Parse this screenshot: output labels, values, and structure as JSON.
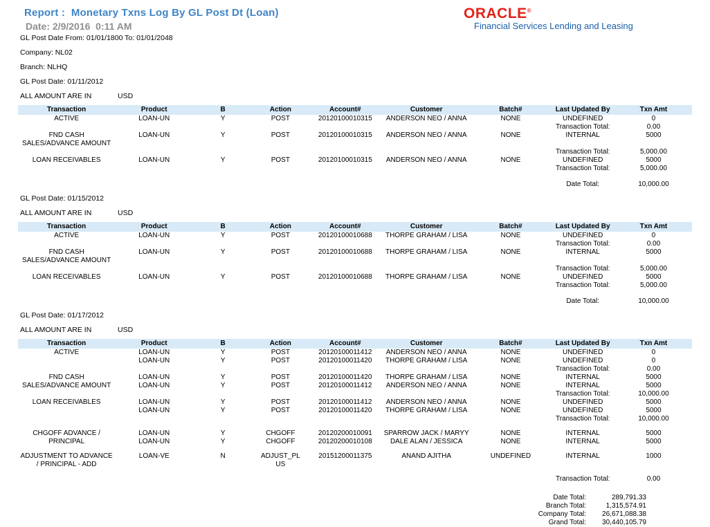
{
  "report": {
    "title": "Report :  Monetary Txns Log By GL Post Dt (Loan)",
    "generated": "Date: 2/9/2016  0:11 AM",
    "filters": {
      "date_range": "GL Post Date From: 01/01/1800 To: 01/01/2048",
      "company": "Company: NL02",
      "branch": "Branch: NLHQ"
    }
  },
  "brand": {
    "name": "ORACLE",
    "registered_mark": "®",
    "tagline": "Financial Services Lending and Leasing",
    "logo_color": "#e2231a",
    "tagline_color": "#1b5fa8"
  },
  "colors": {
    "title_blue": "#4084c7",
    "date_gray": "#8f8f8f",
    "table_header_bg": "#d8eaf7"
  },
  "table": {
    "columns": [
      "Transaction",
      "Product",
      "B",
      "Action",
      "Account#",
      "Customer",
      "Batch#",
      "Last Updated By",
      "Txn Amt"
    ]
  },
  "sections": [
    {
      "gl_post_date_line": "GL Post Date: 01/11/2012",
      "amount_note": "ALL AMOUNT ARE IN",
      "currency": "USD",
      "rows": [
        {
          "type": "data",
          "transaction": "ACTIVE",
          "product": "LOAN-UN",
          "b": "Y",
          "action": "POST",
          "account": "20120100010315",
          "customer": "ANDERSON NEO / ANNA",
          "batch": "NONE",
          "last_updated_by": "UNDEFINED",
          "txn_amt": "0"
        },
        {
          "type": "total",
          "label": "Transaction Total:",
          "amount": "0.00"
        },
        {
          "type": "data",
          "transaction": "FND CASH SALES/ADVANCE AMOUNT",
          "product": "LOAN-UN",
          "b": "Y",
          "action": "POST",
          "account": "20120100010315",
          "customer": "ANDERSON NEO / ANNA",
          "batch": "NONE",
          "last_updated_by": "INTERNAL",
          "txn_amt": "5000"
        },
        {
          "type": "total",
          "label": "Transaction Total:",
          "amount": "5,000.00"
        },
        {
          "type": "data",
          "transaction": "LOAN RECEIVABLES",
          "product": "LOAN-UN",
          "b": "Y",
          "action": "POST",
          "account": "20120100010315",
          "customer": "ANDERSON NEO / ANNA",
          "batch": "NONE",
          "last_updated_by": "UNDEFINED",
          "txn_amt": "5000"
        },
        {
          "type": "total",
          "label": "Transaction Total:",
          "amount": "5,000.00"
        },
        {
          "type": "total",
          "variant": "date",
          "label": "Date Total:",
          "amount": "10,000.00"
        }
      ]
    },
    {
      "gl_post_date_line": "GL Post Date: 01/15/2012",
      "amount_note": "ALL AMOUNT ARE IN",
      "currency": "USD",
      "rows": [
        {
          "type": "data",
          "transaction": "ACTIVE",
          "product": "LOAN-UN",
          "b": "Y",
          "action": "POST",
          "account": "20120100010688",
          "customer": "THORPE GRAHAM / LISA",
          "batch": "NONE",
          "last_updated_by": "UNDEFINED",
          "txn_amt": "0"
        },
        {
          "type": "total",
          "label": "Transaction Total:",
          "amount": "0.00"
        },
        {
          "type": "data",
          "transaction": "FND CASH SALES/ADVANCE AMOUNT",
          "product": "LOAN-UN",
          "b": "Y",
          "action": "POST",
          "account": "20120100010688",
          "customer": "THORPE GRAHAM / LISA",
          "batch": "NONE",
          "last_updated_by": "INTERNAL",
          "txn_amt": "5000"
        },
        {
          "type": "total",
          "label": "Transaction Total:",
          "amount": "5,000.00"
        },
        {
          "type": "data",
          "transaction": "LOAN RECEIVABLES",
          "product": "LOAN-UN",
          "b": "Y",
          "action": "POST",
          "account": "20120100010688",
          "customer": "THORPE GRAHAM / LISA",
          "batch": "NONE",
          "last_updated_by": "UNDEFINED",
          "txn_amt": "5000"
        },
        {
          "type": "total",
          "label": "Transaction Total:",
          "amount": "5,000.00"
        },
        {
          "type": "total",
          "variant": "date",
          "label": "Date Total:",
          "amount": "10,000.00"
        }
      ]
    },
    {
      "gl_post_date_line": "GL Post Date: 01/17/2012",
      "amount_note": "ALL AMOUNT ARE IN",
      "currency": "USD",
      "rows": [
        {
          "type": "data",
          "txn_rowspan": 2,
          "transaction": "ACTIVE",
          "product": "LOAN-UN",
          "b": "Y",
          "action": "POST",
          "account": "20120100011412",
          "customer": "ANDERSON NEO / ANNA",
          "batch": "NONE",
          "last_updated_by": "UNDEFINED",
          "txn_amt": "0"
        },
        {
          "type": "data",
          "product": "LOAN-UN",
          "b": "Y",
          "action": "POST",
          "account": "20120100011420",
          "customer": "THORPE GRAHAM / LISA",
          "batch": "NONE",
          "last_updated_by": "UNDEFINED",
          "txn_amt": "0"
        },
        {
          "type": "total",
          "label": "Transaction Total:",
          "amount": "0.00"
        },
        {
          "type": "data",
          "txn_rowspan": 2,
          "transaction": "FND CASH SALES/ADVANCE AMOUNT",
          "product": "LOAN-UN",
          "b": "Y",
          "action": "POST",
          "account": "20120100011420",
          "customer": "THORPE GRAHAM / LISA",
          "batch": "NONE",
          "last_updated_by": "INTERNAL",
          "txn_amt": "5000"
        },
        {
          "type": "data",
          "product": "LOAN-UN",
          "b": "Y",
          "action": "POST",
          "account": "20120100011412",
          "customer": "ANDERSON NEO / ANNA",
          "batch": "NONE",
          "last_updated_by": "INTERNAL",
          "txn_amt": "5000"
        },
        {
          "type": "total",
          "label": "Transaction Total:",
          "amount": "10,000.00"
        },
        {
          "type": "data",
          "txn_rowspan": 2,
          "transaction": "LOAN RECEIVABLES",
          "product": "LOAN-UN",
          "b": "Y",
          "action": "POST",
          "account": "20120100011412",
          "customer": "ANDERSON NEO / ANNA",
          "batch": "NONE",
          "last_updated_by": "UNDEFINED",
          "txn_amt": "5000"
        },
        {
          "type": "data",
          "product": "LOAN-UN",
          "b": "Y",
          "action": "POST",
          "account": "20120100011420",
          "customer": "THORPE GRAHAM / LISA",
          "batch": "NONE",
          "last_updated_by": "UNDEFINED",
          "txn_amt": "5000"
        },
        {
          "type": "total",
          "label": "Transaction Total:",
          "amount": "10,000.00"
        },
        {
          "type": "data",
          "gap": true,
          "txn_rowspan": 2,
          "transaction": "CHGOFF ADVANCE / PRINCIPAL",
          "product": "LOAN-UN",
          "b": "Y",
          "action": "CHGOFF",
          "account": "20120200010091",
          "customer": "SPARROW JACK / MARYY",
          "batch": "NONE",
          "last_updated_by": "INTERNAL",
          "txn_amt": "5000"
        },
        {
          "type": "data",
          "product": "LOAN-UN",
          "b": "Y",
          "action": "CHGOFF",
          "account": "20120200010108",
          "customer": "DALE ALAN / JESSICA",
          "batch": "NONE",
          "last_updated_by": "INTERNAL",
          "txn_amt": "5000"
        },
        {
          "type": "data",
          "gap": true,
          "transaction": "ADJUSTMENT TO ADVANCE / PRINCIPAL - ADD",
          "product": "LOAN-VE",
          "b": "N",
          "action": "ADJUST_PLUS",
          "account": "20151200011375",
          "customer": "ANAND AJITHA",
          "batch": "UNDEFINED",
          "last_updated_by": "INTERNAL",
          "txn_amt": "1000"
        },
        {
          "type": "total",
          "gap": true,
          "label": "Transaction Total:",
          "amount": "0.00"
        }
      ]
    }
  ],
  "grand_totals": [
    {
      "label": "Date Total:",
      "amount": "289,791.33"
    },
    {
      "label": "Branch Total:",
      "amount": "1,315,574.91"
    },
    {
      "label": "Company Total:",
      "amount": "26,671,088.38"
    },
    {
      "label": "Grand Total:",
      "amount": "30,440,105.79"
    }
  ]
}
